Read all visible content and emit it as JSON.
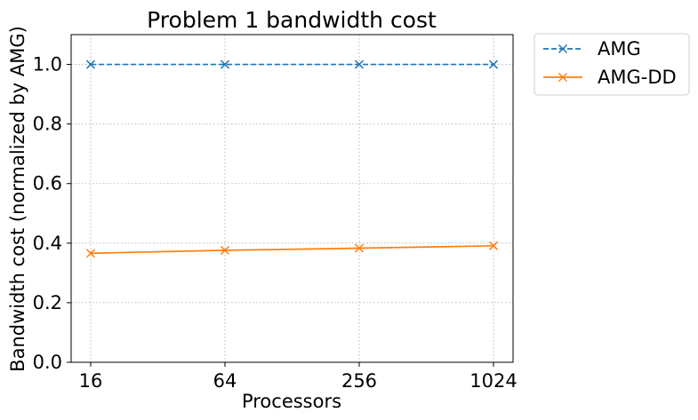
{
  "chart_data": {
    "type": "line",
    "title": "Problem 1 bandwidth cost",
    "xlabel": "Processors",
    "ylabel": "Bandwidth cost (normalized by AMG)",
    "categories": [
      "16",
      "64",
      "256",
      "1024"
    ],
    "yticks": [
      "0.0",
      "0.2",
      "0.4",
      "0.6",
      "0.8",
      "1.0"
    ],
    "ylim": [
      0,
      1.1
    ],
    "grid": true,
    "legend_position": "outside-top-right",
    "series": [
      {
        "name": "AMG",
        "values": [
          1.0,
          1.0,
          1.0,
          1.0
        ],
        "color": "#1f77b4",
        "line_style": "dashed",
        "marker": "x"
      },
      {
        "name": "AMG-DD",
        "values": [
          0.366,
          0.376,
          0.383,
          0.391
        ],
        "color": "#ff7f0e",
        "line_style": "solid",
        "marker": "x"
      }
    ]
  }
}
